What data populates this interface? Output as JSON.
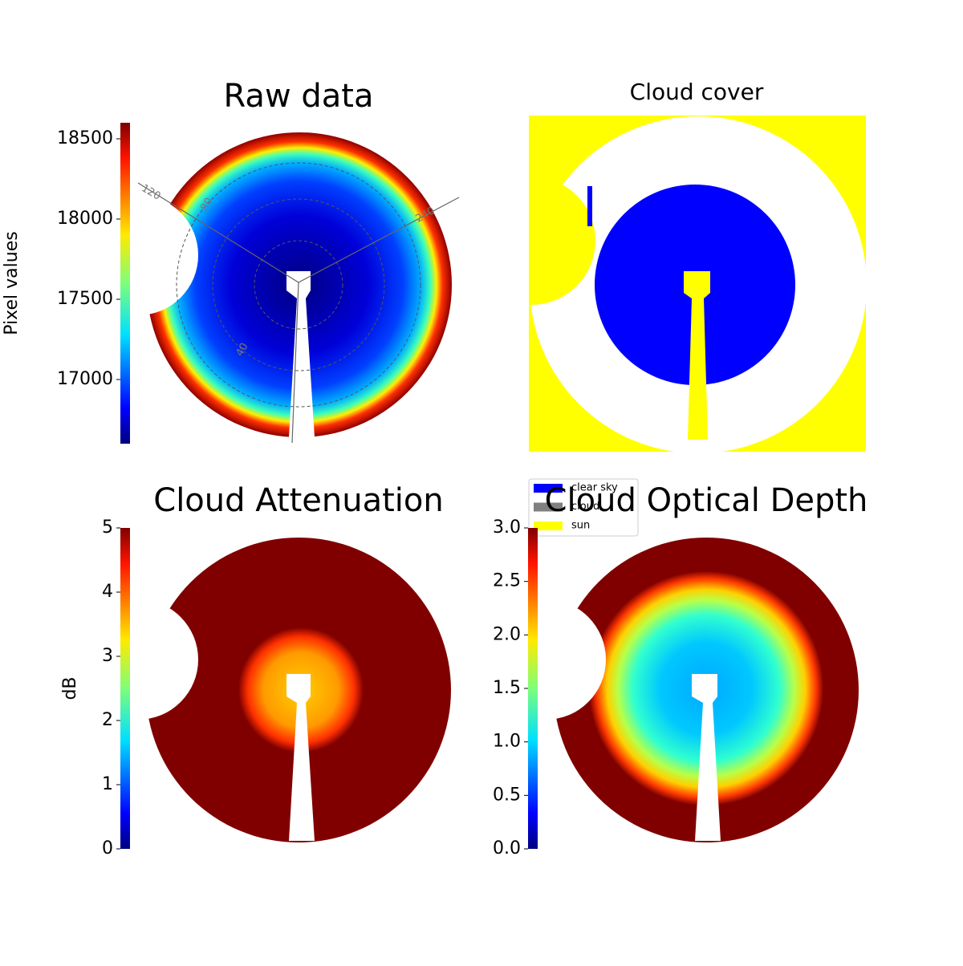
{
  "chart_data": [
    {
      "type": "image",
      "title": "Raw data",
      "colormap": "jet",
      "colorbar_label": "Pixel values",
      "clim": [
        16600,
        18600
      ],
      "cticks": [
        17000,
        17500,
        18000,
        18500
      ],
      "polar_labels": [
        "120",
        "80",
        "240",
        "40"
      ]
    },
    {
      "type": "image",
      "title": "Cloud cover",
      "legend": [
        {
          "name": "clear sky",
          "color": "#0000ff"
        },
        {
          "name": "cloud",
          "color": "#808080"
        },
        {
          "name": "sun",
          "color": "#ffff00"
        }
      ]
    },
    {
      "type": "image",
      "title": "Cloud Attenuation",
      "colormap": "jet",
      "colorbar_label": "dB",
      "clim": [
        0,
        5
      ],
      "cticks": [
        0,
        1,
        2,
        3,
        4,
        5
      ]
    },
    {
      "type": "image",
      "title": "Cloud Optical Depth",
      "colormap": "jet",
      "clim": [
        0,
        3
      ],
      "cticks": [
        {
          "value": 0,
          "label": "0.0"
        },
        0.5,
        {
          "value": 1,
          "label": "1.0"
        },
        1.5,
        {
          "value": 2,
          "label": "2.0"
        },
        2.5,
        {
          "value": 3,
          "label": "3.0"
        }
      ]
    }
  ]
}
